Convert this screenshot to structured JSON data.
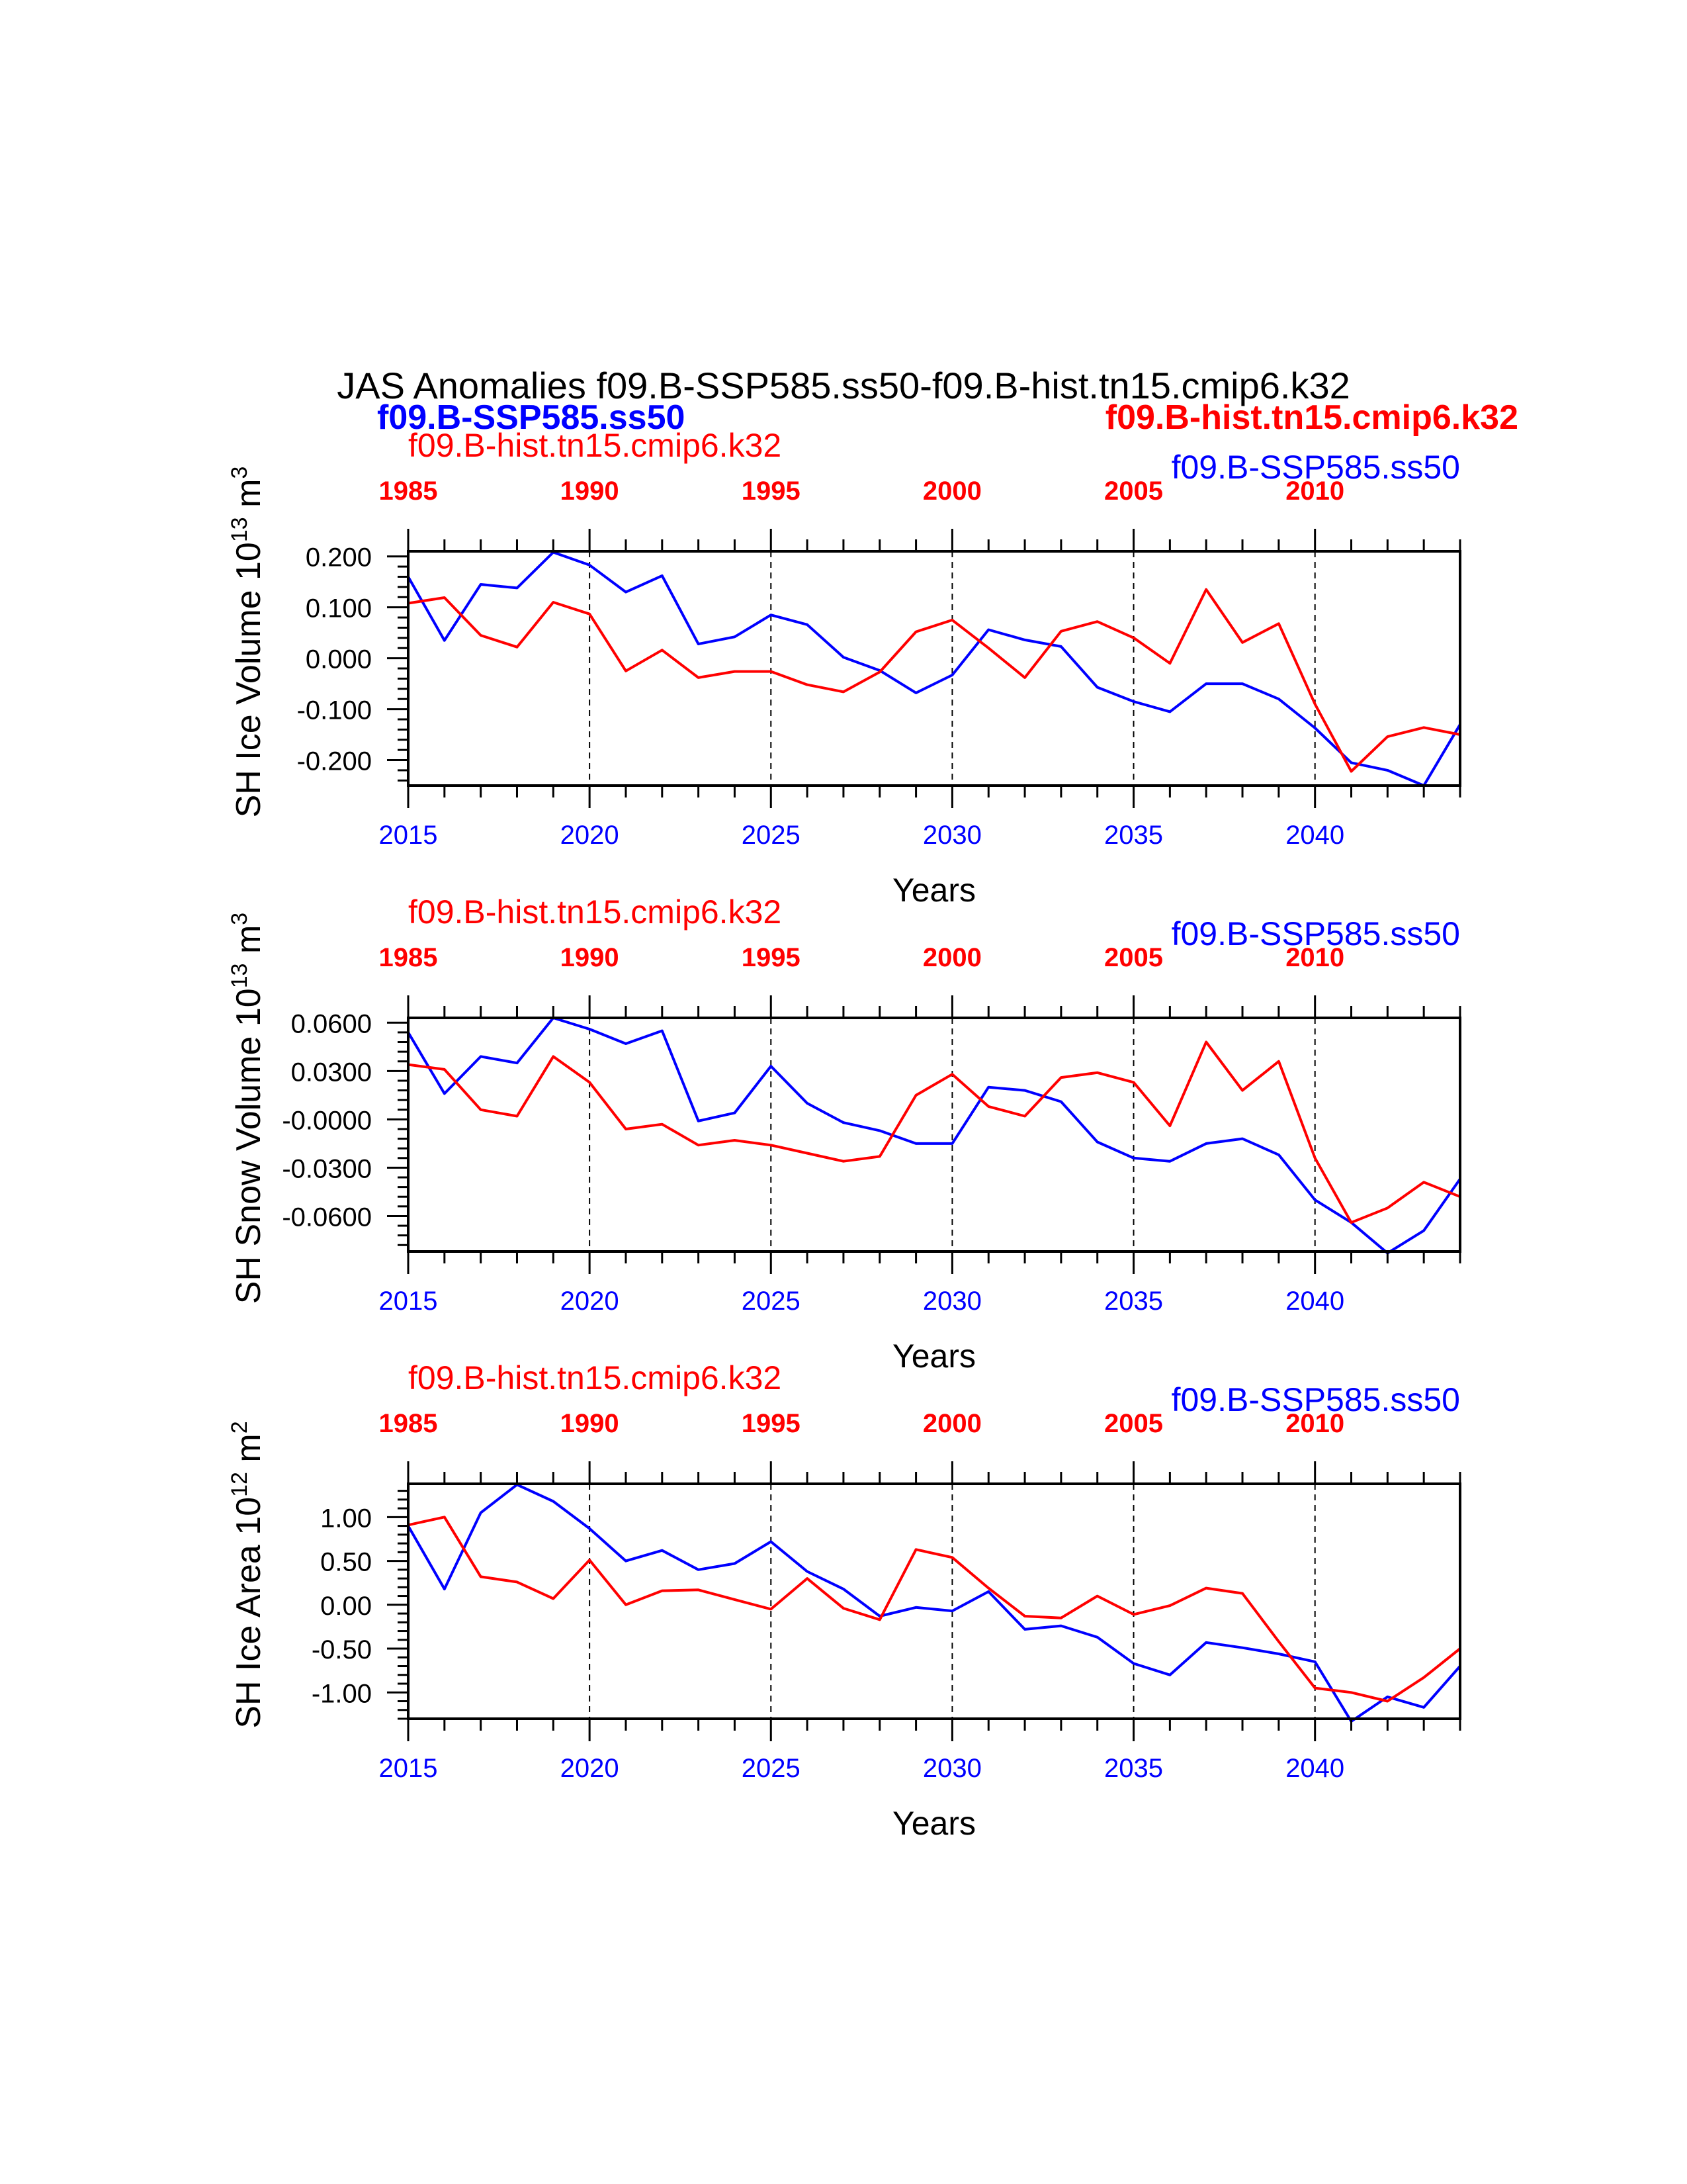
{
  "figure": {
    "title": "JAS Anomalies f09.B-SSP585.ss50-f09.B-hist.tn15.cmip6.k32",
    "header_left": "f09.B-SSP585.ss50",
    "header_right": "f09.B-hist.tn15.cmip6.k32",
    "colors": {
      "ssp": "#0000ff",
      "hist": "#ff0000",
      "frame": "#000000"
    }
  },
  "chart_data": [
    {
      "type": "line",
      "ylabel": "SH Ice Volume 10",
      "ylabel_exp": "13",
      "ylabel_unit": " m",
      "ylabel_unit_exp": "3",
      "xlabel": "Years",
      "top_label_left": "f09.B-hist.tn15.cmip6.k32",
      "top_label_right": "f09.B-SSP585.ss50",
      "xlim": [
        2015,
        2044
      ],
      "ylim": [
        -0.25,
        0.21
      ],
      "yticks": [
        0.2,
        0.1,
        0.0,
        -0.1,
        -0.2
      ],
      "ytick_labels": [
        "0.200",
        "0.100",
        "0.000",
        "-0.100",
        "-0.200"
      ],
      "bottom_ticks": [
        2015,
        2020,
        2025,
        2030,
        2035,
        2040
      ],
      "top_tick_labels": [
        "1985",
        "1990",
        "1995",
        "2000",
        "2005",
        "2010"
      ],
      "x": [
        2015,
        2016,
        2017,
        2018,
        2019,
        2020,
        2021,
        2022,
        2023,
        2024,
        2025,
        2026,
        2027,
        2028,
        2029,
        2030,
        2031,
        2032,
        2033,
        2034,
        2035,
        2036,
        2037,
        2038,
        2039,
        2040,
        2041,
        2042,
        2043,
        2044
      ],
      "series": [
        {
          "name": "f09.B-SSP585.ss50",
          "color": "#0000ff",
          "values": [
            0.16,
            0.035,
            0.145,
            0.138,
            0.208,
            0.183,
            0.13,
            0.162,
            0.028,
            0.042,
            0.085,
            0.066,
            0.002,
            -0.024,
            -0.068,
            -0.033,
            0.056,
            0.036,
            0.023,
            -0.057,
            -0.085,
            -0.105,
            -0.05,
            -0.05,
            -0.08,
            -0.137,
            -0.205,
            -0.22,
            -0.25,
            -0.13
          ]
        },
        {
          "name": "f09.B-hist.tn15.cmip6.k32",
          "color": "#ff0000",
          "values": [
            0.108,
            0.119,
            0.045,
            0.022,
            0.11,
            0.087,
            -0.025,
            0.016,
            -0.038,
            -0.026,
            -0.026,
            -0.052,
            -0.066,
            -0.027,
            0.052,
            0.075,
            0.02,
            -0.038,
            0.053,
            0.072,
            0.04,
            -0.01,
            0.135,
            0.031,
            0.068,
            -0.09,
            -0.222,
            -0.154,
            -0.136,
            -0.15
          ]
        }
      ]
    },
    {
      "type": "line",
      "ylabel": "SH Snow Volume 10",
      "ylabel_exp": "13",
      "ylabel_unit": " m",
      "ylabel_unit_exp": "3",
      "xlabel": "Years",
      "top_label_left": "f09.B-hist.tn15.cmip6.k32",
      "top_label_right": "f09.B-SSP585.ss50",
      "xlim": [
        2015,
        2044
      ],
      "ylim": [
        -0.082,
        0.063
      ],
      "yticks": [
        0.06,
        0.03,
        0.0,
        -0.03,
        -0.06
      ],
      "ytick_labels": [
        "0.0600",
        "0.0300",
        "-0.0000",
        "-0.0300",
        "-0.0600"
      ],
      "bottom_ticks": [
        2015,
        2020,
        2025,
        2030,
        2035,
        2040
      ],
      "top_tick_labels": [
        "1985",
        "1990",
        "1995",
        "2000",
        "2005",
        "2010"
      ],
      "x": [
        2015,
        2016,
        2017,
        2018,
        2019,
        2020,
        2021,
        2022,
        2023,
        2024,
        2025,
        2026,
        2027,
        2028,
        2029,
        2030,
        2031,
        2032,
        2033,
        2034,
        2035,
        2036,
        2037,
        2038,
        2039,
        2040,
        2041,
        2042,
        2043,
        2044
      ],
      "series": [
        {
          "name": "f09.B-SSP585.ss50",
          "color": "#0000ff",
          "values": [
            0.054,
            0.016,
            0.039,
            0.035,
            0.063,
            0.056,
            0.047,
            0.055,
            -0.001,
            0.004,
            0.033,
            0.01,
            -0.002,
            -0.007,
            -0.015,
            -0.015,
            0.02,
            0.018,
            0.011,
            -0.014,
            -0.024,
            -0.026,
            -0.015,
            -0.012,
            -0.022,
            -0.05,
            -0.064,
            -0.083,
            -0.069,
            -0.037
          ]
        },
        {
          "name": "f09.B-hist.tn15.cmip6.k32",
          "color": "#ff0000",
          "values": [
            0.034,
            0.031,
            0.006,
            0.002,
            0.039,
            0.023,
            -0.006,
            -0.003,
            -0.016,
            -0.013,
            -0.016,
            -0.021,
            -0.026,
            -0.023,
            0.015,
            0.028,
            0.008,
            0.002,
            0.026,
            0.029,
            0.023,
            -0.004,
            0.048,
            0.018,
            0.036,
            -0.024,
            -0.064,
            -0.055,
            -0.039,
            -0.048
          ]
        }
      ]
    },
    {
      "type": "line",
      "ylabel": "SH Ice Area 10",
      "ylabel_exp": "12",
      "ylabel_unit": " m",
      "ylabel_unit_exp": "2",
      "xlabel": "Years",
      "top_label_left": "f09.B-hist.tn15.cmip6.k32",
      "top_label_right": "f09.B-SSP585.ss50",
      "xlim": [
        2015,
        2044
      ],
      "ylim": [
        -1.3,
        1.38
      ],
      "yticks": [
        1.0,
        0.5,
        0.0,
        -0.5,
        -1.0
      ],
      "ytick_labels": [
        "1.00",
        "0.50",
        "0.00",
        "-0.50",
        "-1.00"
      ],
      "bottom_ticks": [
        2015,
        2020,
        2025,
        2030,
        2035,
        2040
      ],
      "top_tick_labels": [
        "1985",
        "1990",
        "1995",
        "2000",
        "2005",
        "2010"
      ],
      "x": [
        2015,
        2016,
        2017,
        2018,
        2019,
        2020,
        2021,
        2022,
        2023,
        2024,
        2025,
        2026,
        2027,
        2028,
        2029,
        2030,
        2031,
        2032,
        2033,
        2034,
        2035,
        2036,
        2037,
        2038,
        2039,
        2040,
        2041,
        2042,
        2043,
        2044
      ],
      "series": [
        {
          "name": "f09.B-SSP585.ss50",
          "color": "#0000ff",
          "values": [
            0.9,
            0.18,
            1.05,
            1.37,
            1.18,
            0.87,
            0.5,
            0.62,
            0.4,
            0.47,
            0.72,
            0.38,
            0.18,
            -0.13,
            -0.03,
            -0.07,
            0.15,
            -0.28,
            -0.24,
            -0.37,
            -0.67,
            -0.8,
            -0.43,
            -0.49,
            -0.56,
            -0.65,
            -1.33,
            -1.05,
            -1.17,
            -0.7
          ]
        },
        {
          "name": "f09.B-hist.tn15.cmip6.k32",
          "color": "#ff0000",
          "values": [
            0.91,
            1.0,
            0.32,
            0.26,
            0.07,
            0.51,
            0.0,
            0.16,
            0.17,
            0.06,
            -0.05,
            0.3,
            -0.04,
            -0.17,
            0.63,
            0.54,
            0.19,
            -0.13,
            -0.15,
            0.1,
            -0.11,
            -0.01,
            0.19,
            0.13,
            -0.42,
            -0.95,
            -1.0,
            -1.1,
            -0.83,
            -0.5
          ]
        }
      ]
    }
  ]
}
